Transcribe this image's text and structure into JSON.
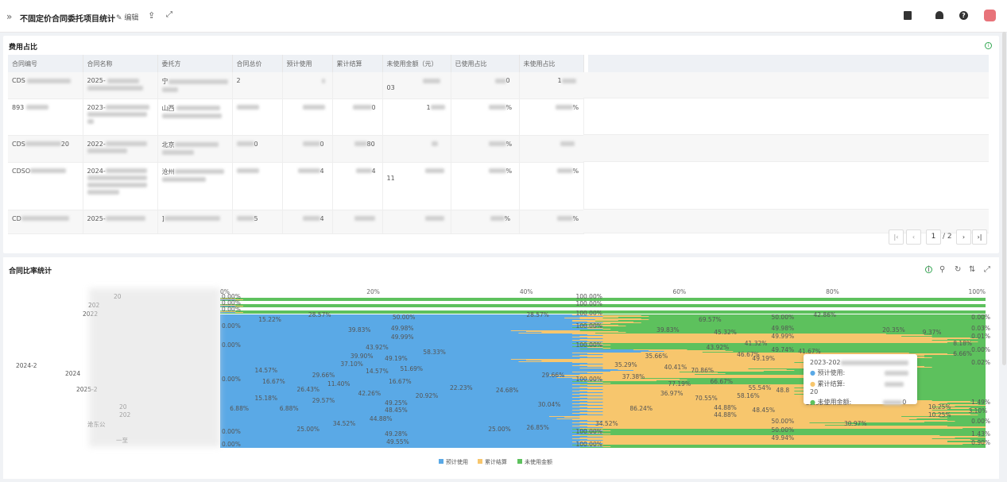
{
  "header": {
    "title": "不固定价合同委托项目统计",
    "edit_label": "✎ 编辑",
    "share_icon": "share-icon",
    "fullscreen_icon": "fullscreen-icon"
  },
  "card_cost": {
    "title": "费用占比",
    "columns": [
      "合同编号",
      "合同名称",
      "委托方",
      "合同总价",
      "预计使用",
      "累计结算",
      "未使用金额（元）",
      "已使用占比",
      "未使用占比"
    ],
    "rows": [
      [
        "CDS",
        "2025-",
        "宁",
        "2",
        "",
        "",
        "03",
        "0",
        "1"
      ],
      [
        "893",
        "2023-",
        "山西",
        "",
        "",
        "0",
        "1",
        "%",
        "%"
      ],
      [
        "CDS",
        "2022-",
        "北京",
        "0",
        "0",
        "80",
        "",
        "%",
        ""
      ],
      [
        "CDSO",
        "2024-",
        "沧州",
        "",
        "4",
        "4",
        "11",
        "%",
        "%"
      ],
      [
        "CD",
        "2025-",
        "]",
        "5",
        "4",
        "",
        "",
        "%",
        "%"
      ]
    ],
    "pager": {
      "current": "1",
      "total": "/ 2"
    }
  },
  "card_ratio": {
    "title": "合同比率统计"
  },
  "chart_data": {
    "type": "bar",
    "orientation": "horizontal-stacked-percent",
    "xlim": [
      0,
      100
    ],
    "x_ticks": [
      "0%",
      "20%",
      "40%",
      "60%",
      "80%",
      "100%"
    ],
    "legend": [
      "预计使用",
      "累计结算",
      "未使用金额"
    ],
    "legend_position": "bottom",
    "colors": {
      "预计使用": "#5aa9e6",
      "累计结算": "#f7c66d",
      "未使用金额": "#5dc15d"
    },
    "category_labels": [
      "20",
      "202",
      "2022",
      "2024-2",
      "2024",
      "2025-2",
      "20",
      "202",
      "沧东公",
      "一至"
    ],
    "percent_labels": [
      {
        "t": "0.00%",
        "x": 0,
        "y": 376
      },
      {
        "t": "100.00%",
        "x": 48.2,
        "y": 376
      },
      {
        "t": "0.00%",
        "x": 0,
        "y": 384
      },
      {
        "t": "100.00%",
        "x": 48.2,
        "y": 385
      },
      {
        "t": "0.00%",
        "x": 0,
        "y": 392
      },
      {
        "t": "100.00%",
        "x": 48.2,
        "y": 397
      },
      {
        "t": "15.22%",
        "x": 6.5,
        "y": 405
      },
      {
        "t": "28.57%",
        "x": 13,
        "y": 399
      },
      {
        "t": "50.00%",
        "x": 24,
        "y": 402
      },
      {
        "t": "28.57%",
        "x": 41.5,
        "y": 399
      },
      {
        "t": "69.57%",
        "x": 64,
        "y": 405
      },
      {
        "t": "50.00%",
        "x": 73.5,
        "y": 402
      },
      {
        "t": "42.86%",
        "x": 79,
        "y": 399
      },
      {
        "t": "0.00%",
        "x": 100,
        "y": 402
      },
      {
        "t": "0.00%",
        "x": 0,
        "y": 413
      },
      {
        "t": "100.00%",
        "x": 48.2,
        "y": 413
      },
      {
        "t": "39.83%",
        "x": 18.2,
        "y": 418
      },
      {
        "t": "49.98%",
        "x": 23.8,
        "y": 416
      },
      {
        "t": "49.99%",
        "x": 23.8,
        "y": 427
      },
      {
        "t": "39.83%",
        "x": 58.5,
        "y": 418
      },
      {
        "t": "45.32%",
        "x": 66,
        "y": 421
      },
      {
        "t": "49.98%",
        "x": 73.5,
        "y": 416
      },
      {
        "t": "49.99%",
        "x": 73.5,
        "y": 426
      },
      {
        "t": "20.35%",
        "x": 88,
        "y": 418
      },
      {
        "t": "9.37%",
        "x": 93,
        "y": 421
      },
      {
        "t": "0.03%",
        "x": 100,
        "y": 416
      },
      {
        "t": "0.01%",
        "x": 100,
        "y": 426
      },
      {
        "t": "0.00%",
        "x": 0,
        "y": 437
      },
      {
        "t": "100.00%",
        "x": 48.2,
        "y": 437
      },
      {
        "t": "43.92%",
        "x": 20.5,
        "y": 440
      },
      {
        "t": "58.33%",
        "x": 28,
        "y": 446
      },
      {
        "t": "43.92%",
        "x": 65,
        "y": 440
      },
      {
        "t": "41.32%",
        "x": 70,
        "y": 435
      },
      {
        "t": "46.67%",
        "x": 69,
        "y": 449
      },
      {
        "t": "49.74%",
        "x": 73.5,
        "y": 443
      },
      {
        "t": "41.67%",
        "x": 77,
        "y": 445
      },
      {
        "t": "8.18%",
        "x": 97,
        "y": 435
      },
      {
        "t": "6.66%",
        "x": 97,
        "y": 448
      },
      {
        "t": "0.00%",
        "x": 100,
        "y": 443
      },
      {
        "t": "39.90%",
        "x": 18.5,
        "y": 451
      },
      {
        "t": "49.19%",
        "x": 23,
        "y": 454
      },
      {
        "t": "35.66%",
        "x": 57,
        "y": 451
      },
      {
        "t": "49.19%",
        "x": 71,
        "y": 454
      },
      {
        "t": "37.10%",
        "x": 17.2,
        "y": 461
      },
      {
        "t": "14.57%",
        "x": 20.5,
        "y": 470
      },
      {
        "t": "51.69%",
        "x": 25,
        "y": 467
      },
      {
        "t": "35.29%",
        "x": 53,
        "y": 462
      },
      {
        "t": "40.41%",
        "x": 59.5,
        "y": 465
      },
      {
        "t": "70.86%",
        "x": 63,
        "y": 469
      },
      {
        "t": "48.0",
        "x": 77,
        "y": 467
      },
      {
        "t": "0.02%",
        "x": 100,
        "y": 459
      },
      {
        "t": "14.57%",
        "x": 6,
        "y": 469
      },
      {
        "t": "29.66%",
        "x": 13.5,
        "y": 475
      },
      {
        "t": "29.66%",
        "x": 43.5,
        "y": 475
      },
      {
        "t": "37.38%",
        "x": 54,
        "y": 477
      },
      {
        "t": "0.00%",
        "x": 0,
        "y": 480
      },
      {
        "t": "100.00%",
        "x": 48.2,
        "y": 480
      },
      {
        "t": "16.67%",
        "x": 7,
        "y": 483
      },
      {
        "t": "11.40%",
        "x": 15.5,
        "y": 486
      },
      {
        "t": "16.67%",
        "x": 23.5,
        "y": 483
      },
      {
        "t": "77.19%",
        "x": 60,
        "y": 486
      },
      {
        "t": "66.67%",
        "x": 65.5,
        "y": 483
      },
      {
        "t": "26.43%",
        "x": 11.5,
        "y": 493
      },
      {
        "t": "22.23%",
        "x": 31.5,
        "y": 491
      },
      {
        "t": "24.68%",
        "x": 37.5,
        "y": 494
      },
      {
        "t": "55.54%",
        "x": 70.5,
        "y": 491
      },
      {
        "t": "48.8",
        "x": 73.5,
        "y": 494
      },
      {
        "t": "15.18%",
        "x": 6,
        "y": 504
      },
      {
        "t": "42.26%",
        "x": 19.5,
        "y": 498
      },
      {
        "t": "20.92%",
        "x": 27,
        "y": 501
      },
      {
        "t": "36.97%",
        "x": 59,
        "y": 498
      },
      {
        "t": "58.16%",
        "x": 69,
        "y": 501
      },
      {
        "t": "29.57%",
        "x": 13.5,
        "y": 507
      },
      {
        "t": "49.25%",
        "x": 23,
        "y": 510
      },
      {
        "t": "30.04%",
        "x": 43,
        "y": 512
      },
      {
        "t": "70.55%",
        "x": 63.5,
        "y": 504
      },
      {
        "t": "39.91%",
        "x": 78,
        "y": 510
      },
      {
        "t": "1.49%",
        "x": 100,
        "y": 509
      },
      {
        "t": "6.88%",
        "x": 2.5,
        "y": 517
      },
      {
        "t": "6.88%",
        "x": 9,
        "y": 517
      },
      {
        "t": "48.45%",
        "x": 23,
        "y": 519
      },
      {
        "t": "86.24%",
        "x": 55,
        "y": 517
      },
      {
        "t": "44.88%",
        "x": 66,
        "y": 516
      },
      {
        "t": "48.45%",
        "x": 71,
        "y": 519
      },
      {
        "t": "10.25%",
        "x": 94,
        "y": 515
      },
      {
        "t": "3.10%",
        "x": 99,
        "y": 520
      },
      {
        "t": "44.88%",
        "x": 21,
        "y": 530
      },
      {
        "t": "44.88%",
        "x": 66,
        "y": 525
      },
      {
        "t": "10.25%",
        "x": 94,
        "y": 525
      },
      {
        "t": "34.52%",
        "x": 16.2,
        "y": 536
      },
      {
        "t": "34.52%",
        "x": 50.5,
        "y": 536
      },
      {
        "t": "50.00%",
        "x": 73.5,
        "y": 533
      },
      {
        "t": "30.97%",
        "x": 83,
        "y": 536
      },
      {
        "t": "0.00%",
        "x": 100,
        "y": 533
      },
      {
        "t": "0.00%",
        "x": 0,
        "y": 546
      },
      {
        "t": "25.00%",
        "x": 11.5,
        "y": 543
      },
      {
        "t": "49.28%",
        "x": 23,
        "y": 549
      },
      {
        "t": "25.00%",
        "x": 36.5,
        "y": 543
      },
      {
        "t": "26.85%",
        "x": 41.5,
        "y": 541
      },
      {
        "t": "100.00%",
        "x": 48.2,
        "y": 546
      },
      {
        "t": "50.00%",
        "x": 73.5,
        "y": 544
      },
      {
        "t": "1.43%",
        "x": 100,
        "y": 549
      },
      {
        "t": "0.00%",
        "x": 0,
        "y": 562
      },
      {
        "t": "49.55%",
        "x": 23.2,
        "y": 559
      },
      {
        "t": "100.00%",
        "x": 48.2,
        "y": 562
      },
      {
        "t": "49.94%",
        "x": 73.5,
        "y": 554
      },
      {
        "t": "0.90%",
        "x": 100,
        "y": 560
      }
    ]
  },
  "tooltip": {
    "title": "2023-202",
    "items": [
      {
        "label": "预计使用:",
        "value": ""
      },
      {
        "label": "累计结算:",
        "value": "20"
      },
      {
        "label": "未使用金额:",
        "value": "0"
      }
    ]
  }
}
